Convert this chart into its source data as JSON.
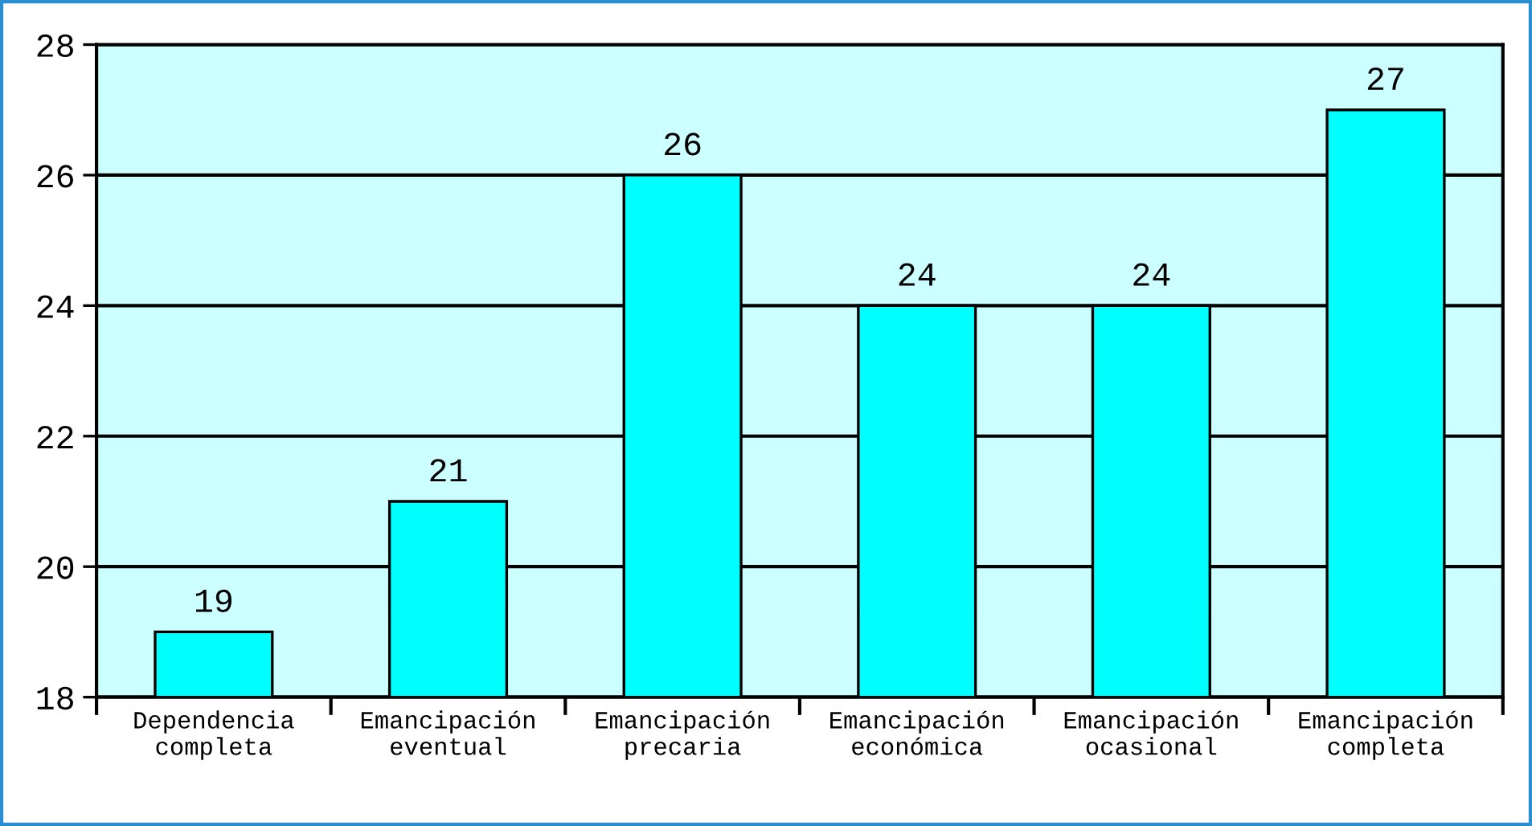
{
  "chart_data": {
    "type": "bar",
    "categories": [
      "Dependencia\ncompleta",
      "Emancipación\neventual",
      "Emancipación\nprecaria",
      "Emancipación\neconómica",
      "Emancipación\nocasional",
      "Emancipación\ncompleta"
    ],
    "values": [
      19,
      21,
      26,
      24,
      24,
      27
    ],
    "color": "#00ffff",
    "ylim": [
      18,
      28
    ],
    "yticks": [
      18,
      20,
      22,
      24,
      26,
      28
    ],
    "grid": "y",
    "data_labels": true,
    "legend": false
  }
}
